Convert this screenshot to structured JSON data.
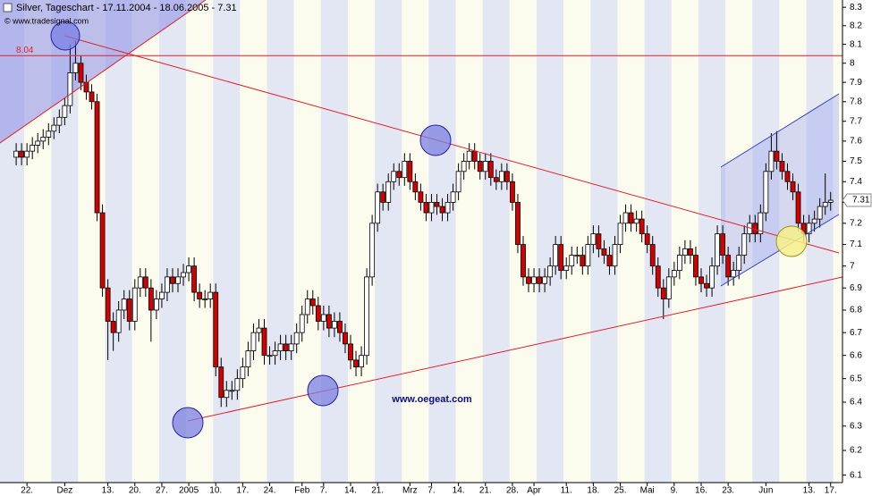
{
  "chart_data": {
    "type": "candlestick",
    "title": "Silver, Tageschart - 17.11.2004 - 18.06.2005 - 7.31",
    "source": "© www.tradesignal.com",
    "watermark": "www.oegeat.com",
    "last": 7.31,
    "hline": 8.04,
    "log_scale": true,
    "up_color": "#ffffff",
    "down_color": "#d40000",
    "ylim": [
      6.07,
      8.34
    ],
    "yticks": [
      6.1,
      6.2,
      6.3,
      6.4,
      6.5,
      6.6,
      6.7,
      6.8,
      6.9,
      7,
      7.1,
      7.2,
      7.3,
      7.4,
      7.5,
      7.6,
      7.7,
      7.8,
      7.9,
      8,
      8.1,
      8.2,
      8.3
    ],
    "xlim": [
      -3,
      153.2
    ],
    "xticks": [
      {
        "value": 2,
        "label": "22."
      },
      {
        "value": 9,
        "label": "Dez"
      },
      {
        "value": 17,
        "label": "13."
      },
      {
        "value": 22,
        "label": "20."
      },
      {
        "value": 27,
        "label": "27."
      },
      {
        "value": 32,
        "label": "2005"
      },
      {
        "value": 37,
        "label": "10."
      },
      {
        "value": 42,
        "label": "17."
      },
      {
        "value": 47,
        "label": "24."
      },
      {
        "value": 53,
        "label": "Feb"
      },
      {
        "value": 57,
        "label": "7."
      },
      {
        "value": 62,
        "label": "14."
      },
      {
        "value": 67,
        "label": "21."
      },
      {
        "value": 73,
        "label": "Mrz"
      },
      {
        "value": 77,
        "label": "7."
      },
      {
        "value": 82,
        "label": "14."
      },
      {
        "value": 87,
        "label": "21."
      },
      {
        "value": 92,
        "label": "28."
      },
      {
        "value": 96,
        "label": "Apr"
      },
      {
        "value": 102,
        "label": "11."
      },
      {
        "value": 107,
        "label": "18."
      },
      {
        "value": 112,
        "label": "25."
      },
      {
        "value": 117,
        "label": "Mai"
      },
      {
        "value": 122,
        "label": "9."
      },
      {
        "value": 127,
        "label": "16."
      },
      {
        "value": 132,
        "label": "23."
      },
      {
        "value": 139,
        "label": "Jun"
      },
      {
        "value": 147,
        "label": "13."
      },
      {
        "value": 151,
        "label": "17."
      }
    ],
    "open": [
      7.52,
      7.55,
      7.52,
      7.55,
      7.58,
      7.6,
      7.62,
      7.65,
      7.68,
      7.72,
      7.78,
      7.95,
      8.0,
      7.9,
      7.85,
      7.8,
      7.25,
      6.9,
      6.75,
      6.7,
      6.8,
      6.85,
      6.75,
      6.9,
      6.95,
      6.9,
      6.8,
      6.85,
      6.88,
      6.95,
      6.92,
      6.95,
      6.97,
      7.0,
      6.88,
      6.85,
      6.85,
      6.88,
      6.55,
      6.42,
      6.45,
      6.45,
      6.5,
      6.55,
      6.62,
      6.7,
      6.72,
      6.6,
      6.6,
      6.62,
      6.65,
      6.62,
      6.65,
      6.7,
      6.78,
      6.85,
      6.82,
      6.75,
      6.78,
      6.72,
      6.75,
      6.7,
      6.65,
      6.58,
      6.55,
      6.6,
      6.95,
      7.2,
      7.35,
      7.3,
      7.4,
      7.45,
      7.42,
      7.5,
      7.4,
      7.35,
      7.3,
      7.25,
      7.3,
      7.28,
      7.25,
      7.3,
      7.35,
      7.45,
      7.5,
      7.55,
      7.5,
      7.45,
      7.5,
      7.42,
      7.4,
      7.45,
      7.4,
      7.3,
      7.1,
      6.95,
      6.92,
      6.95,
      6.92,
      6.95,
      7.0,
      7.1,
      6.98,
      7.0,
      7.05,
      7.05,
      7.0,
      7.1,
      7.15,
      7.08,
      7.05,
      7.0,
      7.1,
      7.2,
      7.25,
      7.2,
      7.22,
      7.15,
      7.1,
      7.0,
      6.9,
      6.85,
      6.95,
      6.98,
      7.05,
      7.08,
      7.05,
      6.95,
      6.92,
      6.9,
      7.0,
      7.15,
      7.05,
      6.95,
      6.98,
      7.05,
      7.15,
      7.2,
      7.15,
      7.25,
      7.45,
      7.55,
      7.5,
      7.45,
      7.4,
      7.35,
      7.2,
      7.15,
      7.2,
      7.22,
      7.28,
      7.3
    ],
    "high": [
      7.59,
      7.59,
      7.59,
      7.62,
      7.64,
      7.66,
      7.69,
      7.72,
      7.76,
      7.82,
      8.1,
      8.12,
      8.04,
      7.94,
      7.89,
      7.84,
      7.29,
      6.94,
      6.79,
      6.84,
      6.89,
      6.89,
      6.94,
      6.99,
      6.99,
      6.94,
      6.89,
      6.92,
      6.99,
      6.99,
      6.99,
      7.01,
      7.04,
      7.04,
      6.92,
      6.89,
      6.92,
      6.92,
      6.59,
      6.49,
      6.49,
      6.54,
      6.59,
      6.66,
      6.74,
      6.76,
      6.76,
      6.64,
      6.66,
      6.69,
      6.69,
      6.69,
      6.74,
      6.82,
      6.89,
      6.89,
      6.86,
      6.82,
      6.82,
      6.79,
      6.79,
      6.74,
      6.69,
      6.62,
      6.64,
      6.99,
      7.24,
      7.39,
      7.39,
      7.44,
      7.49,
      7.49,
      7.54,
      7.54,
      7.44,
      7.39,
      7.34,
      7.34,
      7.34,
      7.32,
      7.34,
      7.39,
      7.49,
      7.54,
      7.59,
      7.59,
      7.54,
      7.54,
      7.54,
      7.46,
      7.49,
      7.49,
      7.44,
      7.34,
      7.14,
      6.99,
      6.99,
      6.99,
      6.99,
      7.04,
      7.14,
      7.14,
      7.04,
      7.09,
      7.09,
      7.09,
      7.14,
      7.19,
      7.19,
      7.12,
      7.09,
      7.14,
      7.24,
      7.29,
      7.29,
      7.26,
      7.26,
      7.19,
      7.14,
      7.04,
      6.94,
      6.99,
      7.02,
      7.09,
      7.12,
      7.12,
      7.09,
      6.99,
      6.96,
      7.04,
      7.19,
      7.19,
      7.09,
      7.02,
      7.09,
      7.19,
      7.24,
      7.24,
      7.29,
      7.49,
      7.64,
      7.65,
      7.54,
      7.49,
      7.44,
      7.39,
      7.24,
      7.24,
      7.26,
      7.32,
      7.44,
      7.35
    ],
    "low": [
      7.48,
      7.48,
      7.48,
      7.51,
      7.54,
      7.56,
      7.58,
      7.61,
      7.64,
      7.68,
      7.74,
      7.91,
      7.86,
      7.81,
      7.76,
      7.21,
      6.86,
      6.58,
      6.62,
      6.66,
      6.76,
      6.71,
      6.71,
      6.86,
      6.86,
      6.66,
      6.76,
      6.81,
      6.84,
      6.88,
      6.88,
      6.91,
      6.93,
      6.84,
      6.81,
      6.81,
      6.81,
      6.51,
      6.38,
      6.38,
      6.41,
      6.41,
      6.46,
      6.51,
      6.58,
      6.66,
      6.56,
      6.56,
      6.56,
      6.58,
      6.58,
      6.58,
      6.61,
      6.66,
      6.74,
      6.78,
      6.71,
      6.71,
      6.68,
      6.68,
      6.66,
      6.61,
      6.54,
      6.51,
      6.51,
      6.56,
      6.91,
      7.16,
      7.26,
      7.26,
      7.36,
      7.38,
      7.38,
      7.36,
      7.31,
      7.26,
      7.21,
      7.21,
      7.24,
      7.21,
      7.21,
      7.26,
      7.31,
      7.41,
      7.46,
      7.46,
      7.41,
      7.41,
      7.38,
      7.36,
      7.36,
      7.36,
      7.26,
      7.06,
      6.91,
      6.88,
      6.88,
      6.88,
      6.88,
      6.91,
      6.96,
      6.94,
      6.94,
      6.96,
      7.01,
      6.96,
      6.96,
      7.06,
      7.04,
      7.01,
      6.96,
      6.96,
      7.06,
      7.16,
      7.16,
      7.16,
      7.11,
      7.06,
      6.96,
      6.86,
      6.76,
      6.81,
      6.91,
      6.94,
      7.01,
      7.01,
      6.91,
      6.88,
      6.86,
      6.86,
      6.96,
      7.01,
      6.91,
      6.91,
      6.94,
      7.01,
      7.11,
      7.11,
      7.11,
      7.21,
      7.41,
      7.46,
      7.41,
      7.36,
      7.31,
      7.16,
      7.11,
      7.11,
      7.16,
      7.18,
      7.24,
      7.26
    ],
    "close": [
      7.55,
      7.52,
      7.55,
      7.58,
      7.6,
      7.62,
      7.65,
      7.68,
      7.72,
      7.78,
      7.95,
      8.0,
      7.9,
      7.85,
      7.8,
      7.25,
      6.9,
      6.75,
      6.7,
      6.8,
      6.85,
      6.75,
      6.9,
      6.95,
      6.9,
      6.8,
      6.85,
      6.88,
      6.95,
      6.92,
      6.95,
      6.97,
      7.0,
      6.88,
      6.85,
      6.85,
      6.88,
      6.55,
      6.42,
      6.45,
      6.45,
      6.5,
      6.55,
      6.62,
      6.7,
      6.72,
      6.6,
      6.6,
      6.62,
      6.65,
      6.62,
      6.65,
      6.7,
      6.78,
      6.85,
      6.82,
      6.75,
      6.78,
      6.72,
      6.75,
      6.7,
      6.65,
      6.58,
      6.55,
      6.6,
      6.95,
      7.2,
      7.35,
      7.3,
      7.4,
      7.45,
      7.42,
      7.5,
      7.4,
      7.35,
      7.3,
      7.25,
      7.3,
      7.28,
      7.25,
      7.3,
      7.35,
      7.45,
      7.5,
      7.55,
      7.5,
      7.45,
      7.5,
      7.42,
      7.4,
      7.45,
      7.4,
      7.3,
      7.1,
      6.95,
      6.92,
      6.95,
      6.92,
      6.95,
      7.0,
      7.1,
      6.98,
      7.0,
      7.05,
      7.05,
      7.0,
      7.1,
      7.15,
      7.08,
      7.05,
      7.0,
      7.1,
      7.2,
      7.25,
      7.2,
      7.22,
      7.15,
      7.1,
      7.0,
      6.9,
      6.85,
      6.95,
      6.98,
      7.05,
      7.08,
      7.05,
      6.95,
      6.92,
      6.9,
      7.0,
      7.15,
      7.05,
      6.95,
      6.98,
      7.05,
      7.15,
      7.2,
      7.15,
      7.25,
      7.45,
      7.55,
      7.5,
      7.45,
      7.4,
      7.35,
      7.2,
      7.15,
      7.2,
      7.22,
      7.28,
      7.3,
      7.31
    ]
  }
}
